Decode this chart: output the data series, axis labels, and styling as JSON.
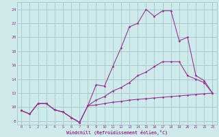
{
  "xlabel": "Windchill (Refroidissement éolien,°C)",
  "background_color": "#ceeaea",
  "grid_color": "#aacccc",
  "line_color": "#993399",
  "xlim": [
    -0.5,
    23.5
  ],
  "ylim": [
    7.5,
    25.0
  ],
  "xticks": [
    0,
    1,
    2,
    3,
    4,
    5,
    6,
    7,
    8,
    9,
    10,
    11,
    12,
    13,
    14,
    15,
    16,
    17,
    18,
    19,
    20,
    21,
    22,
    23
  ],
  "yticks": [
    8,
    10,
    12,
    14,
    16,
    18,
    20,
    22,
    24
  ],
  "series1_x": [
    0,
    1,
    2,
    3,
    4,
    5,
    6,
    7,
    8,
    9,
    10,
    11,
    12,
    13,
    14,
    15,
    16,
    17,
    18,
    19,
    20,
    21,
    22,
    23
  ],
  "series1_y": [
    9.5,
    9.0,
    10.5,
    10.5,
    9.6,
    9.3,
    8.5,
    7.8,
    10.2,
    13.2,
    13.0,
    15.8,
    18.5,
    21.5,
    22.0,
    24.0,
    23.0,
    23.8,
    23.8,
    19.5,
    20.0,
    14.5,
    13.8,
    12.0
  ],
  "series2_x": [
    0,
    1,
    2,
    3,
    4,
    5,
    6,
    7,
    8,
    9,
    10,
    11,
    12,
    13,
    14,
    15,
    16,
    17,
    18,
    19,
    20,
    21,
    22,
    23
  ],
  "series2_y": [
    9.5,
    9.0,
    10.5,
    10.5,
    9.6,
    9.3,
    8.5,
    7.8,
    10.2,
    11.0,
    11.5,
    12.3,
    12.8,
    13.5,
    14.5,
    15.0,
    15.8,
    16.5,
    16.5,
    16.5,
    14.5,
    14.0,
    13.5,
    12.0
  ],
  "series3_x": [
    0,
    1,
    2,
    3,
    4,
    5,
    6,
    7,
    8,
    9,
    10,
    11,
    12,
    13,
    14,
    15,
    16,
    17,
    18,
    19,
    20,
    21,
    22,
    23
  ],
  "series3_y": [
    9.5,
    9.0,
    10.5,
    10.5,
    9.6,
    9.3,
    8.5,
    7.8,
    10.2,
    10.3,
    10.5,
    10.7,
    10.8,
    11.0,
    11.1,
    11.2,
    11.3,
    11.4,
    11.5,
    11.6,
    11.7,
    11.8,
    11.9,
    12.0
  ]
}
